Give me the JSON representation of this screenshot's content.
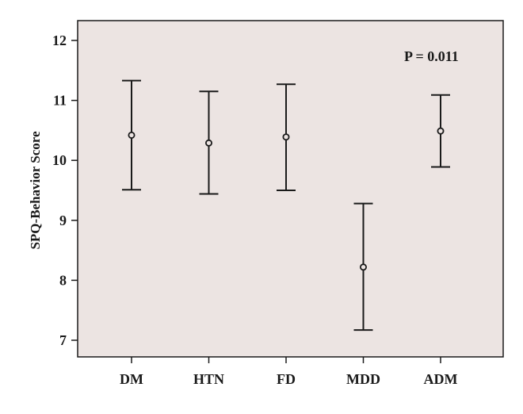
{
  "chart_data": {
    "type": "errorbar",
    "categories": [
      "DM",
      "HTN",
      "FD",
      "MDD",
      "ADM"
    ],
    "series": [
      {
        "means": [
          10.42,
          10.29,
          10.39,
          8.22,
          10.49
        ],
        "lower": [
          9.51,
          9.44,
          9.5,
          7.17,
          9.89
        ],
        "upper": [
          11.33,
          11.15,
          11.27,
          9.28,
          11.09
        ]
      }
    ],
    "xlabel": "",
    "ylabel": "SPQ-Behavior Score",
    "ylim": [
      6.75,
      12.3
    ],
    "yticks": [
      7,
      8,
      9,
      10,
      11,
      12
    ],
    "annotation": "P = 0.011",
    "grid": false,
    "colors": {
      "plot_background": "#ece4e2",
      "ink": "#1a1a1a"
    }
  }
}
